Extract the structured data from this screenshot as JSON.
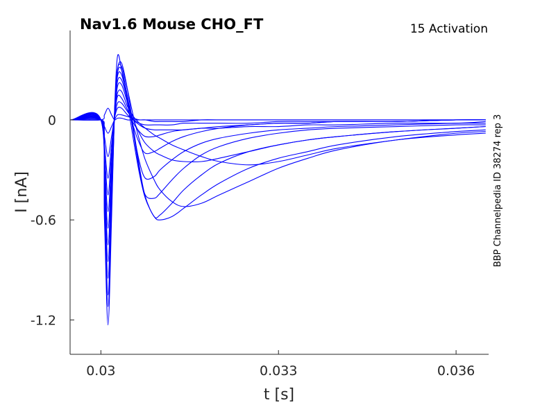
{
  "chart_data": {
    "type": "line",
    "title": "Nav1.6  Mouse  CHO_FT",
    "subtitle": "15  Activation",
    "side_note": "BBP Channelpedia ID 38274 rep 3",
    "xlabel": "t [s]",
    "ylabel": "I [nA]",
    "xlim": [
      0.02948,
      0.03655
    ],
    "ylim": [
      -1.406,
      0.536
    ],
    "xticks": [
      0.03,
      0.033,
      0.036
    ],
    "xtick_labels": [
      "0.03",
      "0.033",
      "0.036"
    ],
    "yticks": [
      0,
      -0.6,
      -1.2
    ],
    "ytick_labels": [
      "0",
      "-0.6",
      "-1.2"
    ],
    "grid": false,
    "line_color": "#0000ff",
    "x": [
      0.0295,
      0.03,
      0.03006,
      0.03012,
      0.03018,
      0.03023,
      0.03028,
      0.03035,
      0.03045,
      0.03055,
      0.03065,
      0.03075,
      0.0309,
      0.031,
      0.0312,
      0.0314,
      0.0317,
      0.032,
      0.0325,
      0.033,
      0.0335,
      0.034,
      0.035,
      0.036,
      0.0365
    ],
    "series": [
      {
        "values": [
          0,
          0,
          -0.6,
          -1.23,
          -0.6,
          0.05,
          0.38,
          0.3,
          0.1,
          -0.12,
          -0.32,
          -0.47,
          -0.58,
          -0.6,
          -0.58,
          -0.53,
          -0.45,
          -0.38,
          -0.29,
          -0.23,
          -0.19,
          -0.15,
          -0.1,
          -0.07,
          -0.06
        ]
      },
      {
        "values": [
          0,
          0,
          -0.55,
          -1.12,
          -0.55,
          0.04,
          0.3,
          0.34,
          0.18,
          -0.05,
          -0.28,
          -0.46,
          -0.58,
          -0.57,
          -0.5,
          -0.42,
          -0.33,
          -0.26,
          -0.19,
          -0.15,
          -0.12,
          -0.1,
          -0.07,
          -0.05,
          -0.04
        ]
      },
      {
        "values": [
          0,
          0,
          -0.5,
          -1.05,
          -0.5,
          0.04,
          0.3,
          0.32,
          0.18,
          0.02,
          -0.12,
          -0.24,
          -0.36,
          -0.42,
          -0.49,
          -0.52,
          -0.5,
          -0.45,
          -0.37,
          -0.29,
          -0.23,
          -0.18,
          -0.12,
          -0.09,
          -0.08
        ]
      },
      {
        "values": [
          0,
          0,
          -0.45,
          -0.95,
          -0.45,
          0.03,
          0.28,
          0.3,
          0.14,
          -0.08,
          -0.3,
          -0.45,
          -0.47,
          -0.44,
          -0.36,
          -0.29,
          -0.21,
          -0.16,
          -0.11,
          -0.08,
          -0.06,
          -0.05,
          -0.04,
          -0.03,
          -0.03
        ]
      },
      {
        "values": [
          0,
          0,
          -0.4,
          -0.85,
          -0.4,
          0.03,
          0.26,
          0.27,
          0.12,
          -0.07,
          -0.25,
          -0.35,
          -0.34,
          -0.3,
          -0.24,
          -0.19,
          -0.14,
          -0.11,
          -0.08,
          -0.06,
          -0.05,
          -0.04,
          -0.03,
          -0.02,
          -0.02
        ]
      },
      {
        "values": [
          0,
          0,
          -0.35,
          -0.75,
          -0.35,
          0.03,
          0.23,
          0.24,
          0.12,
          0.0,
          -0.08,
          -0.14,
          -0.19,
          -0.21,
          -0.24,
          -0.25,
          -0.25,
          -0.23,
          -0.19,
          -0.15,
          -0.12,
          -0.1,
          -0.07,
          -0.05,
          -0.04
        ]
      },
      {
        "values": [
          0,
          0,
          -0.3,
          -0.65,
          -0.3,
          0.02,
          0.2,
          0.21,
          0.1,
          -0.04,
          -0.14,
          -0.2,
          -0.19,
          -0.17,
          -0.13,
          -0.1,
          -0.07,
          -0.05,
          -0.03,
          -0.02,
          -0.02,
          -0.01,
          -0.01,
          0,
          0
        ]
      },
      {
        "values": [
          0,
          0,
          -0.25,
          -0.55,
          -0.25,
          0.02,
          0.16,
          0.17,
          0.08,
          0.02,
          -0.02,
          -0.05,
          -0.09,
          -0.11,
          -0.15,
          -0.18,
          -0.22,
          -0.25,
          -0.27,
          -0.25,
          -0.21,
          -0.17,
          -0.12,
          -0.08,
          -0.07
        ]
      },
      {
        "values": [
          0,
          0,
          -0.2,
          -0.45,
          -0.2,
          0.02,
          0.14,
          0.13,
          0.06,
          -0.02,
          -0.07,
          -0.1,
          -0.1,
          -0.09,
          -0.07,
          -0.06,
          -0.05,
          -0.04,
          -0.03,
          -0.02,
          -0.02,
          -0.01,
          -0.01,
          0,
          0
        ]
      },
      {
        "values": [
          0,
          0,
          -0.15,
          -0.35,
          -0.15,
          0.01,
          0.1,
          0.1,
          0.05,
          0.0,
          -0.03,
          -0.05,
          -0.06,
          -0.06,
          -0.06,
          -0.06,
          -0.05,
          -0.05,
          -0.04,
          -0.04,
          -0.03,
          -0.03,
          -0.02,
          -0.02,
          -0.01
        ]
      },
      {
        "values": [
          0,
          0,
          -0.1,
          -0.22,
          -0.1,
          0.01,
          0.07,
          0.07,
          0.03,
          0.0,
          -0.02,
          -0.03,
          -0.03,
          -0.03,
          -0.03,
          -0.02,
          -0.02,
          -0.02,
          -0.02,
          -0.01,
          -0.01,
          -0.01,
          -0.01,
          0,
          0
        ]
      },
      {
        "values": [
          0,
          0,
          -0.04,
          -0.08,
          -0.04,
          0,
          0.03,
          0.03,
          0.02,
          0.01,
          0,
          0,
          -0.01,
          -0.01,
          -0.01,
          -0.01,
          0,
          0,
          0,
          0,
          0,
          0,
          0,
          0,
          0
        ]
      },
      {
        "values": [
          0,
          0,
          0.03,
          0.07,
          0.03,
          0,
          0.01,
          0.01,
          0,
          0,
          0,
          0,
          0,
          0,
          0,
          0,
          0,
          0,
          0,
          0,
          0,
          0,
          0,
          0,
          0
        ]
      }
    ]
  }
}
